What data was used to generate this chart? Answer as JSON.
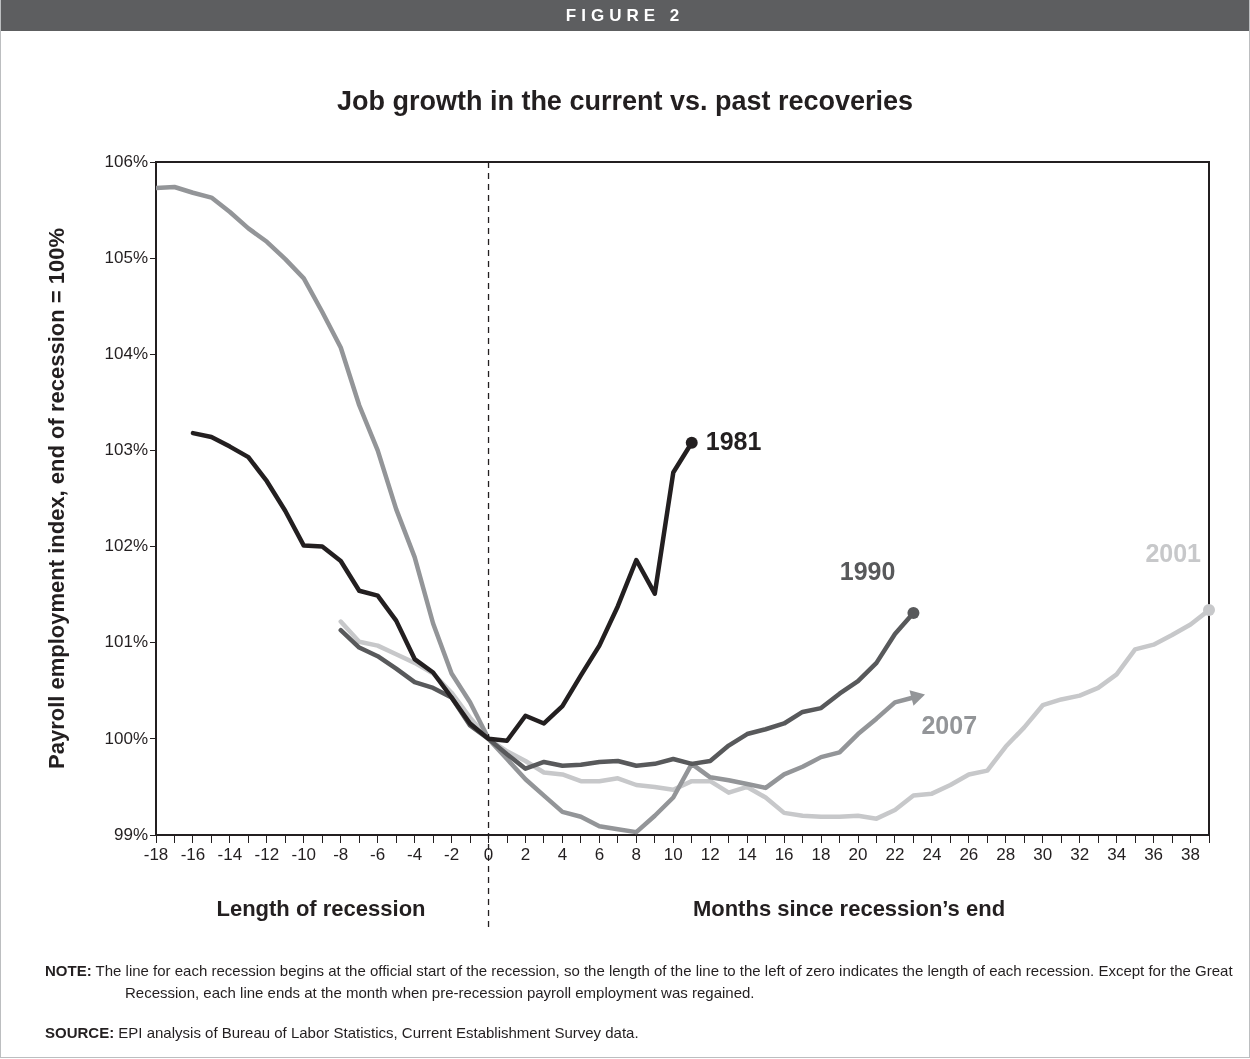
{
  "chart_data": {
    "type": "line",
    "title": "Job growth in the current vs. past recoveries",
    "xlabel": "Months since recession’s end",
    "ylabel": "Payroll employment index, end of recession = 100%",
    "annotations": [
      "FIGURE 2",
      "Length of recession",
      "NOTE: The line for each recession begins at the official start of the recession, so the length of the line to the left of zero indicates the length of each recession. Except for the Great Recession, each line ends at the month when pre-recession payroll employment was regained.",
      "SOURCE: EPI analysis of Bureau of Labor Statistics, Current Establishment Survey data."
    ],
    "xlim": [
      -18,
      39
    ],
    "xticks": [
      -18,
      {
        "value": -17,
        "label": null
      },
      -16,
      {
        "value": -15,
        "label": null
      },
      -14,
      {
        "value": -13,
        "label": null
      },
      -12,
      {
        "value": -11,
        "label": null
      },
      -10,
      {
        "value": -9,
        "label": null
      },
      -8,
      {
        "value": -7,
        "label": null
      },
      -6,
      {
        "value": -5,
        "label": null
      },
      -4,
      {
        "value": -3,
        "label": null
      },
      -2,
      {
        "value": -1,
        "label": null
      },
      0,
      {
        "value": 1,
        "label": null
      },
      2,
      {
        "value": 3,
        "label": null
      },
      4,
      {
        "value": 5,
        "label": null
      },
      6,
      {
        "value": 7,
        "label": null
      },
      8,
      {
        "value": 9,
        "label": null
      },
      10,
      {
        "value": 11,
        "label": null
      },
      12,
      {
        "value": 13,
        "label": null
      },
      14,
      {
        "value": 15,
        "label": null
      },
      16,
      {
        "value": 17,
        "label": null
      },
      18,
      {
        "value": 19,
        "label": null
      },
      20,
      {
        "value": 21,
        "label": null
      },
      22,
      {
        "value": 23,
        "label": null
      },
      24,
      {
        "value": 25,
        "label": null
      },
      26,
      {
        "value": 27,
        "label": null
      },
      28,
      {
        "value": 29,
        "label": null
      },
      30,
      {
        "value": 31,
        "label": null
      },
      32,
      {
        "value": 33,
        "label": null
      },
      34,
      {
        "value": 35,
        "label": null
      },
      36,
      {
        "value": 37,
        "label": null
      },
      38,
      {
        "value": 39,
        "label": null
      }
    ],
    "ylim": [
      99,
      106
    ],
    "yticks": [
      {
        "value": 99,
        "label": "99%"
      },
      {
        "value": 100,
        "label": "100%"
      },
      {
        "value": 101,
        "label": "101%"
      },
      {
        "value": 102,
        "label": "102%"
      },
      {
        "value": 103,
        "label": "103%"
      },
      {
        "value": 104,
        "label": "104%"
      },
      {
        "value": 105,
        "label": "105%"
      },
      {
        "value": 106,
        "label": "106%"
      }
    ],
    "grid": false,
    "legend": false,
    "ref_lines": [
      {
        "axis": "x",
        "value": 0,
        "color": "#231f20",
        "line_style": "dashed"
      }
    ],
    "series": [
      {
        "name": "1981",
        "color": "#231f20",
        "x": [
          -16,
          -15,
          -14,
          -13,
          -12,
          -11,
          -10,
          -9,
          -8,
          -7,
          -6,
          -5,
          -4,
          -3,
          -2,
          -1,
          0,
          1,
          2,
          3,
          4,
          5,
          6,
          7,
          8,
          9,
          10,
          11
        ],
        "values": [
          103.18,
          103.14,
          103.04,
          102.93,
          102.68,
          102.37,
          102.01,
          102.0,
          101.85,
          101.54,
          101.49,
          101.23,
          100.83,
          100.69,
          100.43,
          100.16,
          100,
          99.98,
          100.24,
          100.16,
          100.34,
          100.66,
          100.97,
          101.38,
          101.86,
          101.51,
          102.77,
          103.08
        ]
      },
      {
        "name": "1990",
        "color": "#58595b",
        "x": [
          -8,
          -7,
          -6,
          -5,
          -4,
          -3,
          -2,
          -1,
          0,
          1,
          2,
          3,
          4,
          5,
          6,
          7,
          8,
          9,
          10,
          11,
          12,
          13,
          14,
          15,
          16,
          17,
          18,
          19,
          20,
          21,
          22,
          23
        ],
        "values": [
          101.13,
          100.95,
          100.86,
          100.73,
          100.59,
          100.53,
          100.43,
          100.14,
          100,
          99.84,
          99.69,
          99.76,
          99.72,
          99.73,
          99.76,
          99.77,
          99.72,
          99.74,
          99.79,
          99.74,
          99.77,
          99.93,
          100.05,
          100.1,
          100.16,
          100.28,
          100.32,
          100.47,
          100.6,
          100.79,
          101.09,
          101.31
        ]
      },
      {
        "name": "2007",
        "color": "#939598",
        "x": [
          -18,
          -17,
          -16,
          -15,
          -14,
          -13,
          -12,
          -11,
          -10,
          -9,
          -8,
          -7,
          -6,
          -5,
          -4,
          -3,
          -2,
          -1,
          0,
          1,
          2,
          3,
          4,
          5,
          6,
          7,
          8,
          9,
          10,
          11,
          12,
          13,
          14,
          15,
          16,
          17,
          18,
          19,
          20,
          21,
          22,
          23
        ],
        "values": [
          105.73,
          105.74,
          105.68,
          105.63,
          105.48,
          105.31,
          105.17,
          104.99,
          104.79,
          104.44,
          104.07,
          103.47,
          103.0,
          102.39,
          101.89,
          101.2,
          100.68,
          100.38,
          100,
          99.79,
          99.58,
          99.41,
          99.24,
          99.19,
          99.09,
          99.06,
          99.03,
          99.2,
          99.39,
          99.74,
          99.6,
          99.57,
          99.53,
          99.49,
          99.63,
          99.71,
          99.81,
          99.86,
          100.05,
          100.21,
          100.38,
          100.43
        ]
      },
      {
        "name": "2001",
        "color": "#c7c8ca",
        "x": [
          -8,
          -7,
          -6,
          -5,
          -4,
          -3,
          -2,
          -1,
          0,
          1,
          2,
          3,
          4,
          5,
          6,
          7,
          8,
          9,
          10,
          11,
          12,
          13,
          14,
          15,
          16,
          17,
          18,
          19,
          20,
          21,
          22,
          23,
          24,
          25,
          26,
          27,
          28,
          29,
          30,
          31,
          32,
          33,
          34,
          35,
          36,
          37,
          38,
          39
        ],
        "values": [
          101.22,
          101.01,
          100.97,
          100.88,
          100.79,
          100.68,
          100.48,
          100.22,
          100,
          99.87,
          99.77,
          99.65,
          99.63,
          99.56,
          99.56,
          99.59,
          99.52,
          99.5,
          99.47,
          99.56,
          99.56,
          99.44,
          99.5,
          99.39,
          99.23,
          99.2,
          99.19,
          99.19,
          99.2,
          99.17,
          99.26,
          99.41,
          99.43,
          99.52,
          99.63,
          99.67,
          99.92,
          100.12,
          100.35,
          100.41,
          100.45,
          100.53,
          100.67,
          100.93,
          100.98,
          101.08,
          101.19,
          101.34
        ]
      }
    ]
  }
}
